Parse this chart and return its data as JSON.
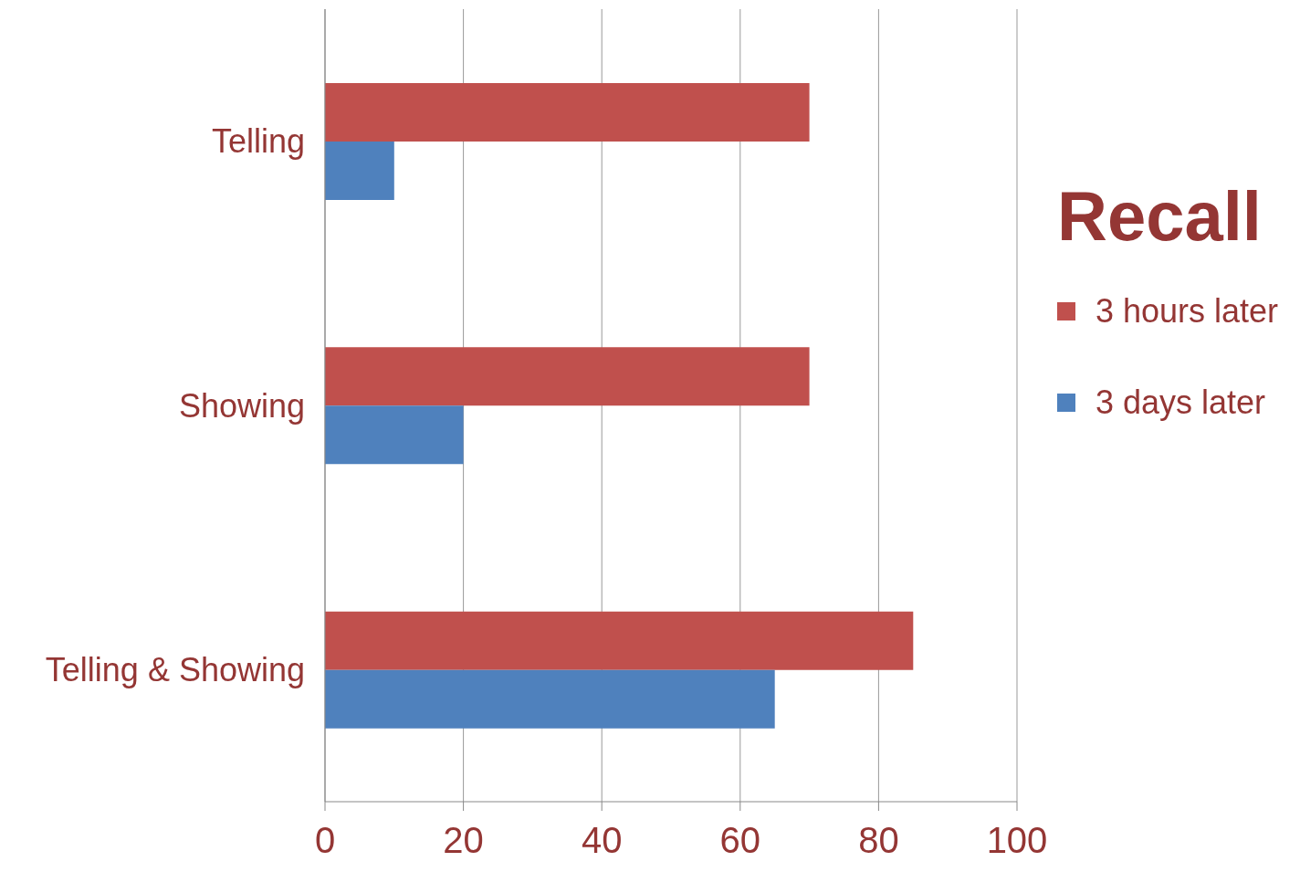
{
  "chart_data": {
    "type": "bar",
    "orientation": "horizontal",
    "legend_title": "Recall",
    "categories": [
      "Telling",
      "Showing",
      "Telling & Showing"
    ],
    "series": [
      {
        "name": "3 hours later",
        "color": "#c0504d",
        "values": [
          70,
          70,
          85
        ]
      },
      {
        "name": "3 days later",
        "color": "#4f81bd",
        "values": [
          10,
          20,
          65
        ]
      }
    ],
    "xlim": [
      0,
      100
    ],
    "xticks": [
      0,
      20,
      40,
      60,
      80,
      100
    ],
    "grid": "x",
    "legend": "right"
  }
}
